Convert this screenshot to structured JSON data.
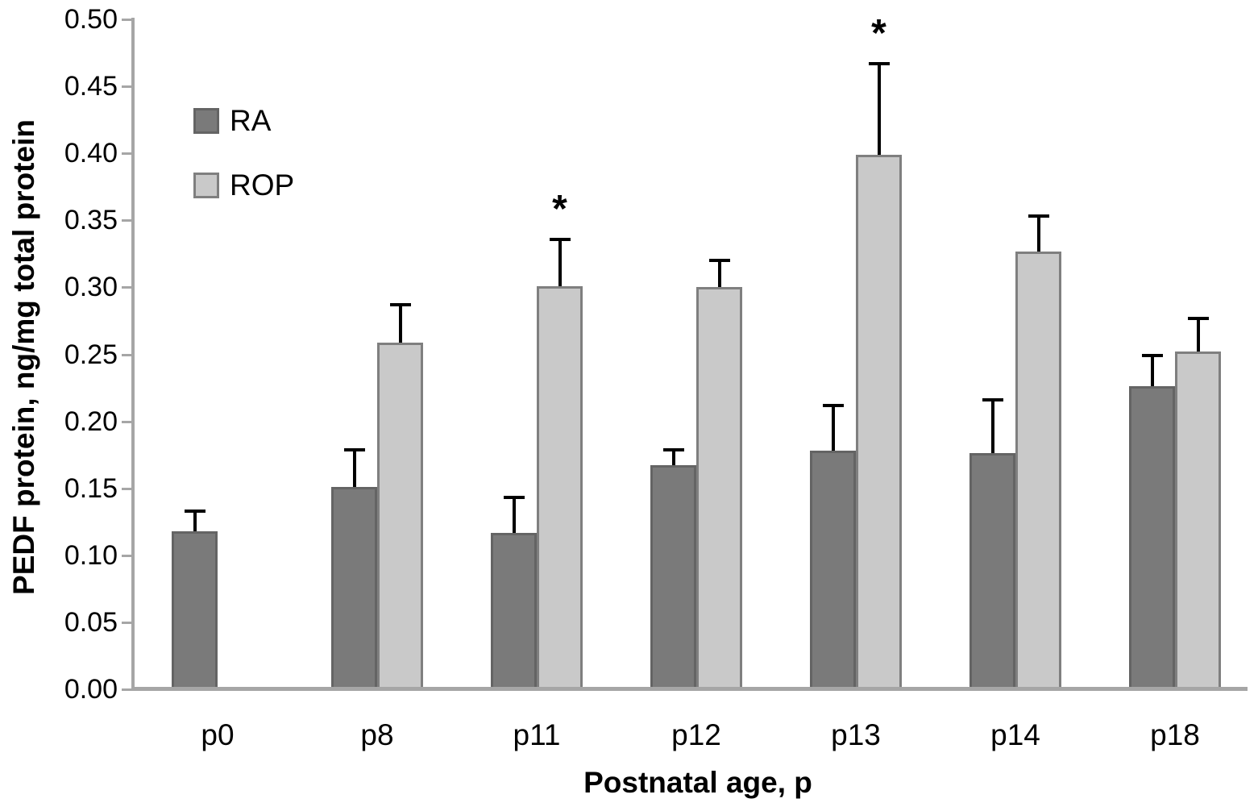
{
  "chart_data": {
    "type": "bar",
    "xlabel": "Postnatal age, p",
    "ylabel": "PEDF protein, ng/mg total protein",
    "categories": [
      "p0",
      "p8",
      "p11",
      "p12",
      "p13",
      "p14",
      "p18"
    ],
    "series": [
      {
        "name": "RA",
        "fill_color": "#7a7a7a",
        "border_color": "#646464",
        "values": [
          0.118,
          0.151,
          0.117,
          0.167,
          0.178,
          0.176,
          0.226
        ],
        "upper_errors": [
          0.015,
          0.028,
          0.026,
          0.012,
          0.034,
          0.04,
          0.023
        ]
      },
      {
        "name": "ROP",
        "fill_color": "#c9c9c9",
        "border_color": "#7f7f7f",
        "values": [
          null,
          0.259,
          0.301,
          0.3,
          0.399,
          0.327,
          0.252
        ],
        "upper_errors": [
          null,
          0.028,
          0.035,
          0.02,
          0.068,
          0.026,
          0.025
        ]
      }
    ],
    "annotations": [
      {
        "text": "*",
        "category_index": 2,
        "series": "ROP"
      },
      {
        "text": "*",
        "category_index": 4,
        "series": "ROP"
      }
    ],
    "ylim": [
      0,
      0.5
    ],
    "ytick_step": 0.05,
    "ytick_labels": [
      "0.00",
      "0.05",
      "0.10",
      "0.15",
      "0.20",
      "0.25",
      "0.30",
      "0.35",
      "0.40",
      "0.45",
      "0.50"
    ],
    "grid": false,
    "legend_position": "upper-left-inside",
    "error_bar_color": "#000000",
    "axis_color": "#a6a6a6"
  }
}
